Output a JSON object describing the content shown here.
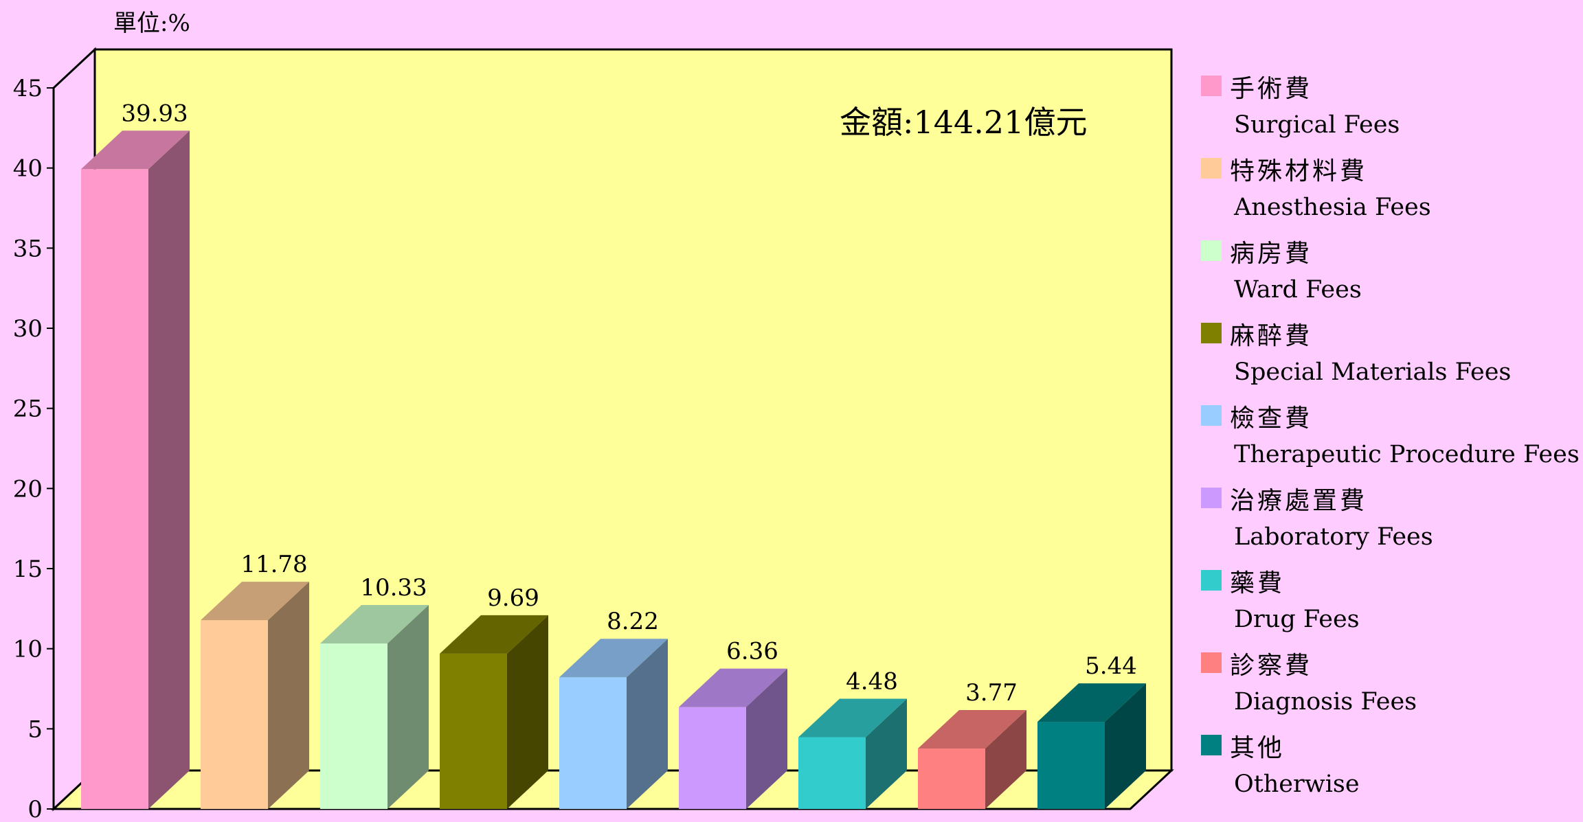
{
  "unit_label": "單位:%",
  "total_label": "金額:144.21億元",
  "chart_data": {
    "type": "bar",
    "title": "",
    "xlabel": "",
    "ylabel": "",
    "ylim": [
      0,
      45
    ],
    "yticks": [
      0,
      5,
      10,
      15,
      20,
      25,
      30,
      35,
      40,
      45
    ],
    "grid": false,
    "legend_position": "right",
    "categories": [
      {
        "zh": "手術費",
        "en": "Surgical Fees",
        "color": "#ff99cc"
      },
      {
        "zh": "特殊材料費",
        "en": "Anesthesia Fees",
        "color": "#ffcc99"
      },
      {
        "zh": "病房費",
        "en": "Ward Fees",
        "color": "#ccffcc"
      },
      {
        "zh": "麻醉費",
        "en": "Special Materials Fees",
        "color": "#808000"
      },
      {
        "zh": "檢查費",
        "en": "Therapeutic Procedure Fees",
        "color": "#99ccff"
      },
      {
        "zh": "治療處置費",
        "en": "Laboratory Fees",
        "color": "#cc99ff"
      },
      {
        "zh": "藥費",
        "en": "Drug Fees",
        "color": "#33cccc"
      },
      {
        "zh": "診察費",
        "en": "Diagnosis Fees",
        "color": "#ff8080"
      },
      {
        "zh": "其他",
        "en": "Otherwise",
        "color": "#008080"
      }
    ],
    "values": [
      39.93,
      11.78,
      10.33,
      9.69,
      8.22,
      6.36,
      4.48,
      3.77,
      5.44
    ],
    "value_labels": [
      "39.93",
      "11.78",
      "10.33",
      "9.69",
      "8.22",
      "6.36",
      "4.48",
      "3.77",
      "5.44"
    ]
  }
}
